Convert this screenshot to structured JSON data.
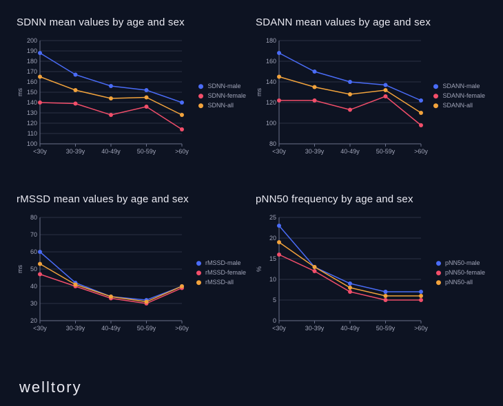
{
  "background_color": "#0d1322",
  "text_color": "#e8e8f0",
  "axis_text_color": "#a0a4b8",
  "grid_color": "#2a3044",
  "axis_line_color": "#6a708a",
  "marker_radius": 3,
  "line_width": 1.5,
  "brand": "welltory",
  "categories": [
    "<30y",
    "30-39y",
    "40-49y",
    "50-59y",
    ">60y"
  ],
  "series_colors": {
    "male": "#4a6cf7",
    "female": "#f24e6a",
    "all": "#f2a33c"
  },
  "panels": [
    {
      "key": "sdnn",
      "title": "SDNN mean values by age and sex",
      "ylabel": "ms",
      "ylim": [
        100,
        200
      ],
      "ytick_step": 10,
      "series": [
        {
          "name": "SDNN-male",
          "color_key": "male",
          "values": [
            188,
            167,
            156,
            152,
            140
          ]
        },
        {
          "name": "SDNN-female",
          "color_key": "female",
          "values": [
            140,
            139,
            128,
            136,
            114
          ]
        },
        {
          "name": "SDNN-all",
          "color_key": "all",
          "values": [
            165,
            152,
            144,
            145,
            128
          ]
        }
      ]
    },
    {
      "key": "sdann",
      "title": "SDANN mean values by age and sex",
      "ylabel": "ms",
      "ylim": [
        80,
        180
      ],
      "ytick_step": 20,
      "series": [
        {
          "name": "SDANN-male",
          "color_key": "male",
          "values": [
            168,
            150,
            140,
            137,
            122
          ]
        },
        {
          "name": "SDANN-female",
          "color_key": "female",
          "values": [
            122,
            122,
            113,
            126,
            98
          ]
        },
        {
          "name": "SDANN-all",
          "color_key": "all",
          "values": [
            145,
            135,
            128,
            132,
            110
          ]
        }
      ]
    },
    {
      "key": "rmssd",
      "title": "rMSSD mean values by age and sex",
      "ylabel": "ms",
      "ylim": [
        20,
        80
      ],
      "ytick_step": 10,
      "series": [
        {
          "name": "rMSSD-male",
          "color_key": "male",
          "values": [
            60,
            42,
            34,
            32,
            40
          ]
        },
        {
          "name": "rMSSD-female",
          "color_key": "female",
          "values": [
            47,
            40,
            33,
            30,
            39
          ]
        },
        {
          "name": "rMSSD-all",
          "color_key": "all",
          "values": [
            53,
            41,
            34,
            31,
            40
          ]
        }
      ]
    },
    {
      "key": "pnn50",
      "title": "pNN50 frequency by age and sex",
      "ylabel": "%",
      "ylim": [
        0,
        25
      ],
      "ytick_step": 5,
      "series": [
        {
          "name": "pNN50-male",
          "color_key": "male",
          "values": [
            23,
            13,
            9,
            7,
            7
          ]
        },
        {
          "name": "pNN50-female",
          "color_key": "female",
          "values": [
            16,
            12,
            7,
            5,
            5
          ]
        },
        {
          "name": "pNN50-all",
          "color_key": "all",
          "values": [
            19,
            13,
            8,
            6,
            6
          ]
        }
      ]
    }
  ]
}
